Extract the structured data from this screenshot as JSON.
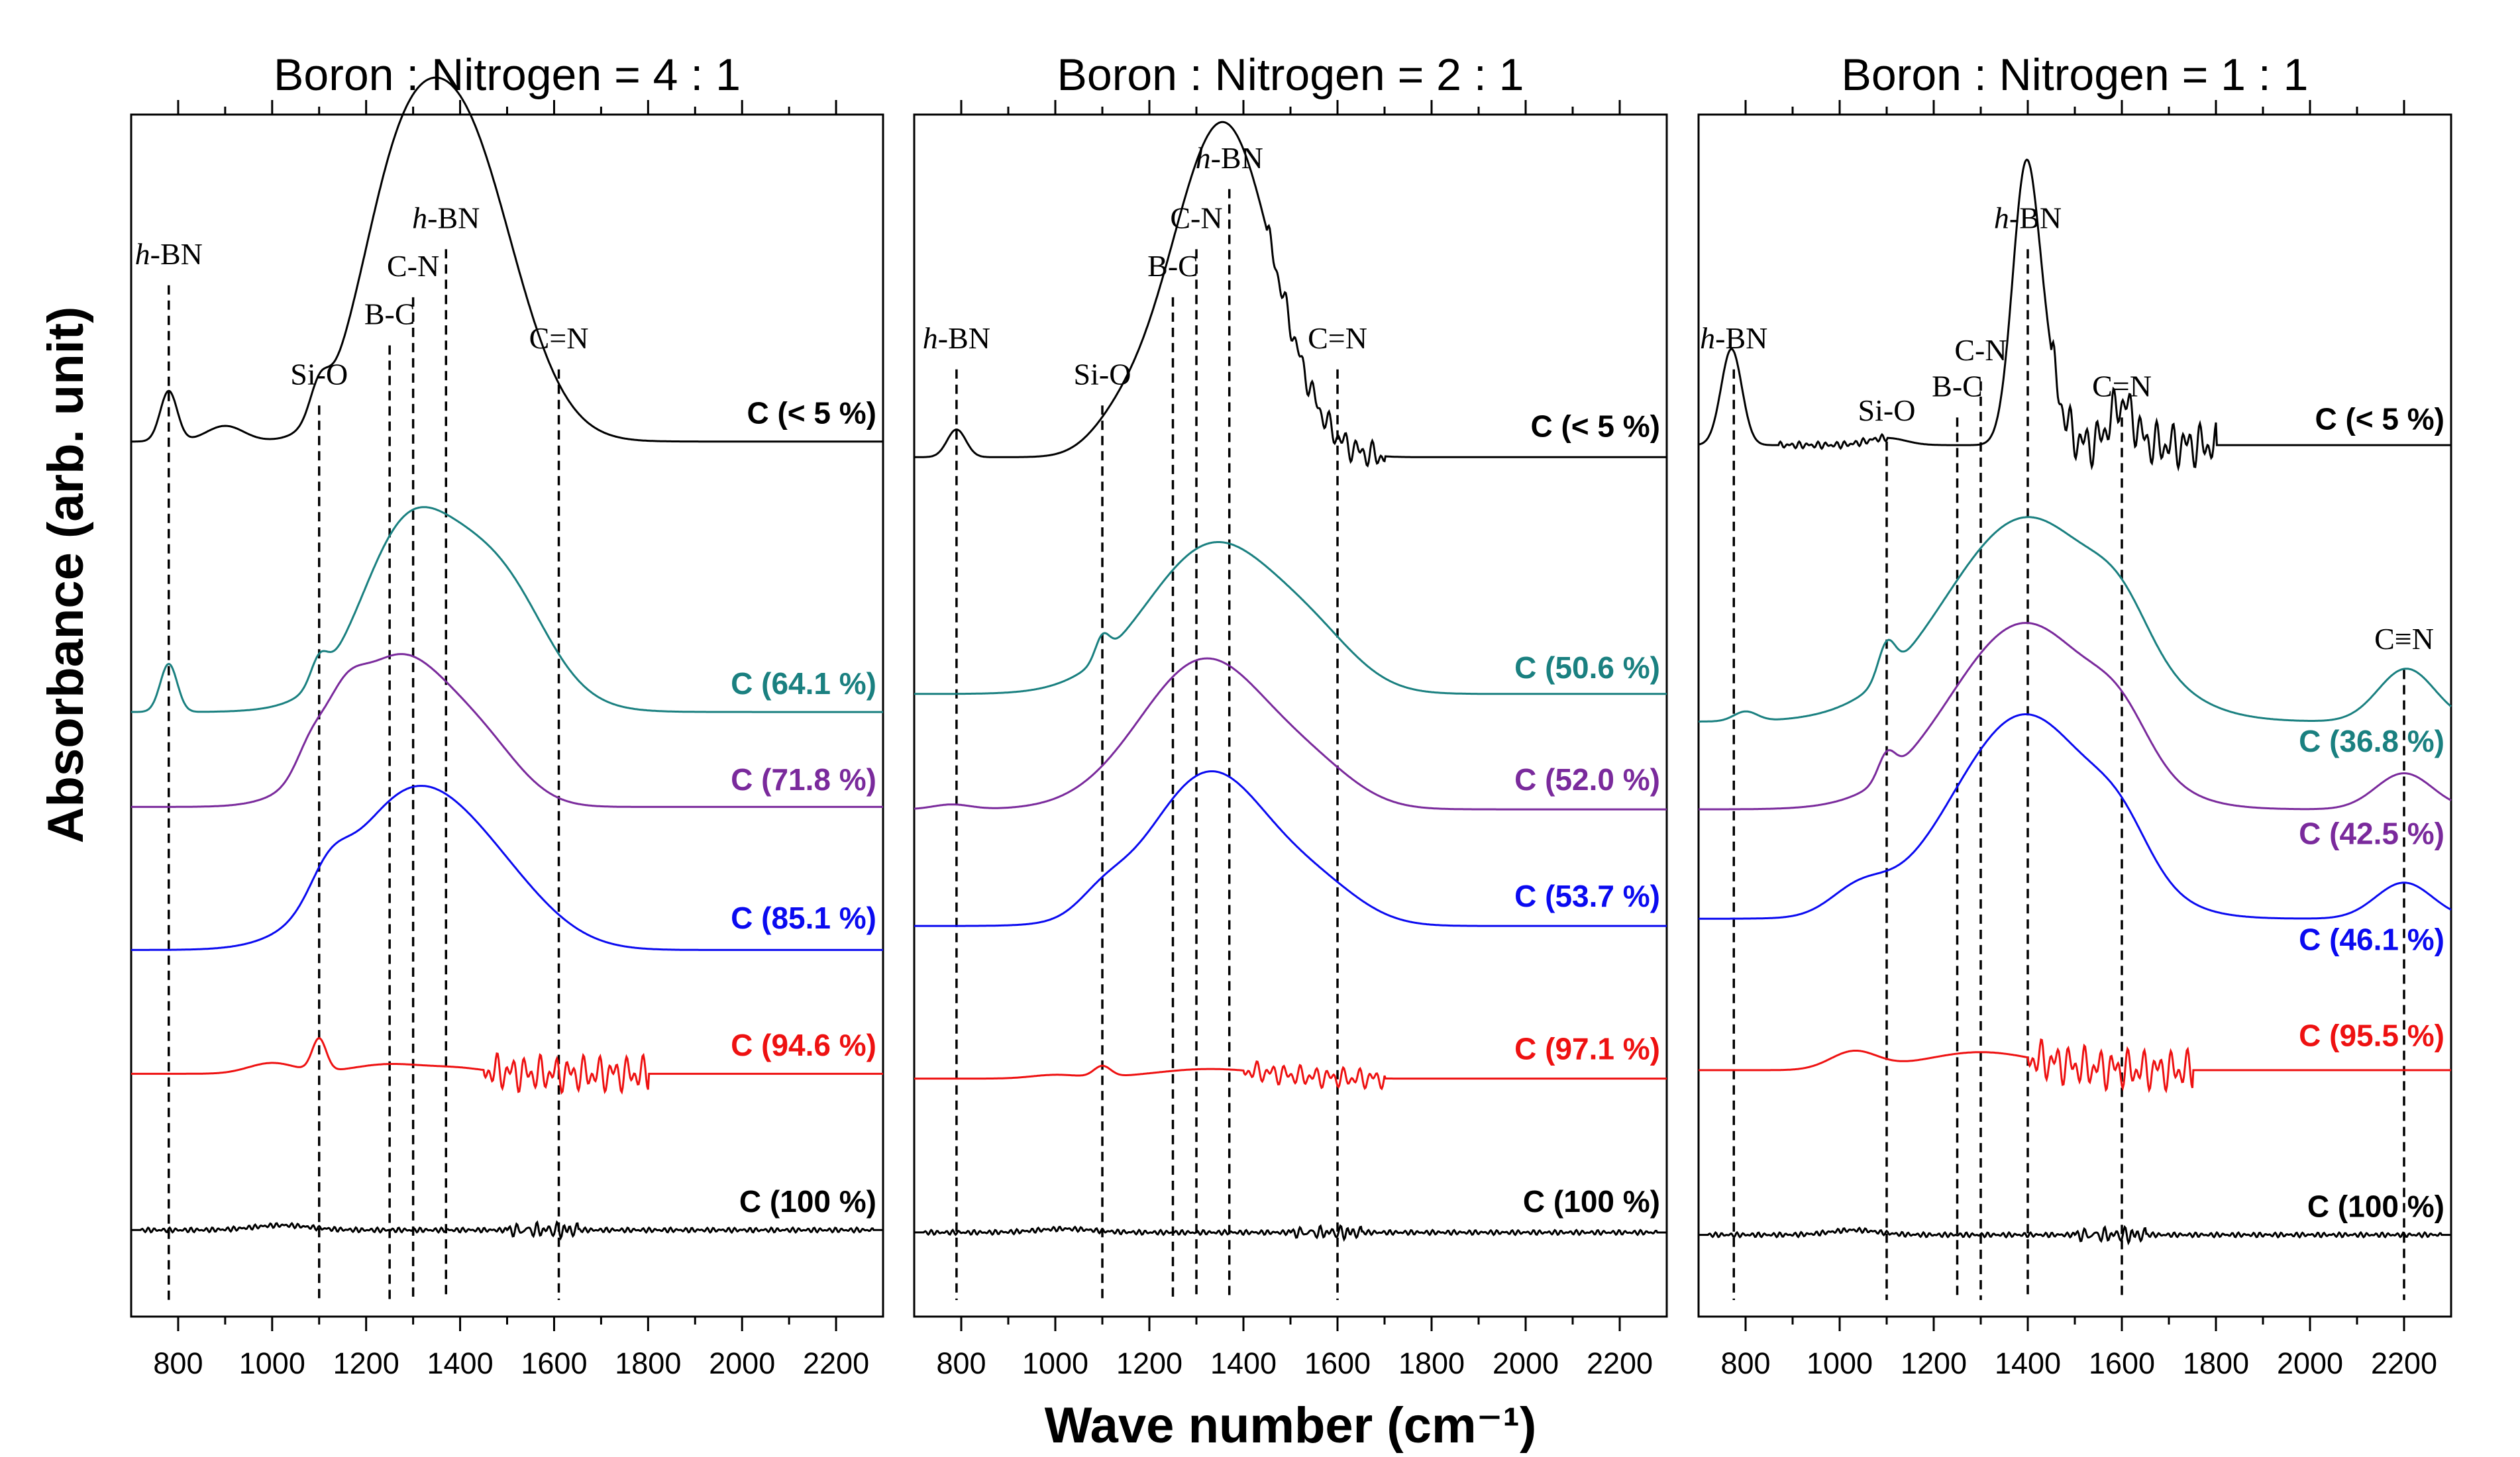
{
  "figure": {
    "ylabel": "Absorbance (arb. unit)",
    "xlabel": "Wave number (cm⁻¹)"
  },
  "chart_data": [
    {
      "type": "line",
      "title": "Boron : Nitrogen = 4 : 1",
      "xlim": [
        700,
        2300
      ],
      "ylim": [
        0,
        100
      ],
      "xticks": [
        800,
        1000,
        1200,
        1400,
        1600,
        1800,
        2000,
        2200
      ],
      "xticklabels": [
        "800",
        "1000",
        "1200",
        "1400",
        "1600",
        "1800",
        "2000",
        "2200"
      ],
      "refs": [
        {
          "x": 780,
          "label": "h-BN",
          "italic": "h",
          "rest": "-BN",
          "ly": 87
        },
        {
          "x": 1100,
          "label": "Si-O",
          "ly": 77
        },
        {
          "x": 1250,
          "label": "B-C",
          "ly": 82
        },
        {
          "x": 1300,
          "label": "C-N",
          "ly": 86
        },
        {
          "x": 1370,
          "label": "h-BN",
          "italic": "h",
          "rest": "-BN",
          "ly": 90
        },
        {
          "x": 1610,
          "label": "C=N",
          "ly": 80
        }
      ],
      "series": [
        {
          "name": "C (< 5 %)",
          "color": "#000000",
          "base": 72.8,
          "label_y": 74.3,
          "peaks": [
            [
              780,
              4.2,
              18
            ],
            [
              1100,
              2.6,
              20
            ],
            [
              1250,
              12,
              80
            ],
            [
              1375,
              20,
              110
            ],
            [
              1450,
              8,
              110
            ],
            [
              900,
              1.3,
              40
            ]
          ],
          "noise": []
        },
        {
          "name": "C (64.1 %)",
          "color": "#1a8080",
          "base": 50.3,
          "label_y": 51.8,
          "peaks": [
            [
              780,
              4.0,
              18
            ],
            [
              1100,
              2.0,
              18
            ],
            [
              1370,
              14,
              140
            ],
            [
              1260,
              5,
              80
            ],
            [
              1520,
              3,
              80
            ]
          ],
          "noise": []
        },
        {
          "name": "C (71.8 %)",
          "color": "#7a2a9c",
          "base": 42.4,
          "label_y": 43.8,
          "peaks": [
            [
              1270,
              12.5,
              120
            ],
            [
              1080,
              2.0,
              30
            ],
            [
              1150,
              3,
              40
            ],
            [
              1460,
              3,
              80
            ]
          ],
          "noise": []
        },
        {
          "name": "C (85.1 %)",
          "color": "#0a0af0",
          "base": 30.5,
          "label_y": 32.3,
          "peaks": [
            [
              1300,
              13,
              140
            ],
            [
              1120,
              2.5,
              40
            ],
            [
              1500,
              3,
              110
            ]
          ],
          "noise": []
        },
        {
          "name": "C (94.6 %)",
          "color": "#ee1111",
          "base": 20.2,
          "label_y": 21.7,
          "peaks": [
            [
              1100,
              2.7,
              15
            ],
            [
              1000,
              0.9,
              50
            ],
            [
              1250,
              0.8,
              80
            ],
            [
              1400,
              0.4,
              60
            ]
          ],
          "noise": [
            [
              1450,
              1800,
              1.6,
              23
            ]
          ]
        },
        {
          "name": "C (100 %)",
          "color": "#000000",
          "base": 7.2,
          "label_y": 8.7,
          "peaks": [
            [
              1020,
              0.4,
              60
            ]
          ],
          "noise": [
            [
              720,
              2280,
              0.2,
              13
            ],
            [
              1500,
              1650,
              0.6,
              17
            ]
          ]
        }
      ]
    },
    {
      "type": "line",
      "title": "Boron : Nitrogen = 2 : 1",
      "xlim": [
        700,
        2300
      ],
      "ylim": [
        0,
        100
      ],
      "xticks": [
        800,
        1000,
        1200,
        1400,
        1600,
        1800,
        2000,
        2200
      ],
      "xticklabels": [
        "800",
        "1000",
        "1200",
        "1400",
        "1600",
        "1800",
        "2000",
        "2200"
      ],
      "refs": [
        {
          "x": 790,
          "label": "h-BN",
          "italic": "h",
          "rest": "-BN",
          "ly": 80
        },
        {
          "x": 1100,
          "label": "Si-O",
          "ly": 77
        },
        {
          "x": 1250,
          "label": "B-C",
          "ly": 86
        },
        {
          "x": 1300,
          "label": "C-N",
          "ly": 90
        },
        {
          "x": 1370,
          "label": "h-BN",
          "italic": "h",
          "rest": "-BN",
          "ly": 95
        },
        {
          "x": 1600,
          "label": "C=N",
          "ly": 80
        }
      ],
      "series": [
        {
          "name": "C (< 5 %)",
          "color": "#000000",
          "base": 71.5,
          "label_y": 73.2,
          "peaks": [
            [
              790,
              2.3,
              20
            ],
            [
              1250,
              8,
              80
            ],
            [
              1360,
              22,
              85
            ],
            [
              1460,
              6,
              80
            ],
            [
              1130,
              2,
              60
            ]
          ],
          "noise": [
            [
              1450,
              1700,
              1.2,
              23
            ]
          ]
        },
        {
          "name": "C (50.6 %)",
          "color": "#1a8080",
          "base": 51.8,
          "label_y": 53.1,
          "peaks": [
            [
              1340,
              12.5,
              145
            ],
            [
              1100,
              1.8,
              15
            ],
            [
              1560,
              2.5,
              90
            ]
          ],
          "noise": []
        },
        {
          "name": "C (52.0 %)",
          "color": "#7a2a9c",
          "base": 42.2,
          "label_y": 43.8,
          "peaks": [
            [
              1320,
              12.5,
              140
            ],
            [
              780,
              0.4,
              40
            ],
            [
              1560,
              2,
              90
            ]
          ],
          "noise": []
        },
        {
          "name": "C (53.7 %)",
          "color": "#0a0af0",
          "base": 32.5,
          "label_y": 34.1,
          "peaks": [
            [
              1330,
              12.8,
              130
            ],
            [
              1100,
              1.4,
              50
            ],
            [
              1570,
              2.3,
              90
            ]
          ],
          "noise": []
        },
        {
          "name": "C (97.1 %)",
          "color": "#ee1111",
          "base": 19.8,
          "label_y": 21.4,
          "peaks": [
            [
              1100,
              0.9,
              18
            ],
            [
              1330,
              0.8,
              120
            ],
            [
              1000,
              0.3,
              50
            ]
          ],
          "noise": [
            [
              1400,
              1700,
              0.9,
              23
            ]
          ]
        },
        {
          "name": "C (100 %)",
          "color": "#000000",
          "base": 7.0,
          "label_y": 8.7,
          "peaks": [
            [
              1020,
              0.3,
              60
            ]
          ],
          "noise": [
            [
              720,
              2280,
              0.2,
              13
            ],
            [
              1500,
              1650,
              0.5,
              17
            ]
          ]
        }
      ]
    },
    {
      "type": "line",
      "title": "Boron : Nitrogen = 1 : 1",
      "xlim": [
        700,
        2300
      ],
      "ylim": [
        0,
        100
      ],
      "xticks": [
        800,
        1000,
        1200,
        1400,
        1600,
        1800,
        2000,
        2200
      ],
      "xticklabels": [
        "800",
        "1000",
        "1200",
        "1400",
        "1600",
        "1800",
        "2000",
        "2200"
      ],
      "refs": [
        {
          "x": 775,
          "label": "h-BN",
          "italic": "h",
          "rest": "-BN",
          "ly": 80
        },
        {
          "x": 1100,
          "label": "Si-O",
          "ly": 74
        },
        {
          "x": 1250,
          "label": "B-C",
          "ly": 76
        },
        {
          "x": 1300,
          "label": "C-N",
          "ly": 79
        },
        {
          "x": 1400,
          "label": "h-BN",
          "italic": "h",
          "rest": "-BN",
          "ly": 90
        },
        {
          "x": 1600,
          "label": "C=N",
          "ly": 76
        },
        {
          "x": 2200,
          "label": "C≡N",
          "ly": 55
        }
      ],
      "series": [
        {
          "name": "C (< 5 %)",
          "color": "#000000",
          "base": 72.5,
          "label_y": 73.8,
          "peaks": [
            [
              770,
              8,
              22
            ],
            [
              1395,
              22,
              28
            ],
            [
              1440,
              5,
              30
            ],
            [
              1600,
              3.5,
              25
            ],
            [
              1100,
              0.6,
              40
            ]
          ],
          "noise": [
            [
              1450,
              1800,
              2.0,
              23
            ],
            [
              870,
              1100,
              0.3,
              16
            ]
          ]
        },
        {
          "name": "C (36.8 %)",
          "color": "#1a8080",
          "base": 49.5,
          "label_y": 47.0,
          "peaks": [
            [
              1400,
              17,
              175
            ],
            [
              1100,
              2.8,
              18
            ],
            [
              2205,
              4.4,
              60
            ],
            [
              800,
              0.8,
              25
            ],
            [
              1600,
              3,
              60
            ]
          ],
          "noise": []
        },
        {
          "name": "C (42.5 %)",
          "color": "#7a2a9c",
          "base": 42.2,
          "label_y": 39.3,
          "peaks": [
            [
              1395,
              15.5,
              160
            ],
            [
              1100,
              2.0,
              18
            ],
            [
              2200,
              3.0,
              60
            ],
            [
              1600,
              3,
              60
            ]
          ],
          "noise": []
        },
        {
          "name": "C (46.1 %)",
          "color": "#0a0af0",
          "base": 33.1,
          "label_y": 30.5,
          "peaks": [
            [
              1395,
              17,
              155
            ],
            [
              1040,
              2,
              60
            ],
            [
              2200,
              3.0,
              60
            ],
            [
              1600,
              3,
              60
            ]
          ],
          "noise": []
        },
        {
          "name": "C (95.5 %)",
          "color": "#ee1111",
          "base": 20.5,
          "label_y": 22.5,
          "peaks": [
            [
              1030,
              1.5,
              50
            ],
            [
              1300,
              1.5,
              120
            ]
          ],
          "noise": [
            [
              1400,
              1750,
              1.8,
              23
            ]
          ]
        },
        {
          "name": "C (100 %)",
          "color": "#000000",
          "base": 6.8,
          "label_y": 8.3,
          "peaks": [
            [
              1030,
              0.4,
              50
            ]
          ],
          "noise": [
            [
              720,
              2280,
              0.2,
              13
            ],
            [
              1500,
              1650,
              0.6,
              17
            ]
          ]
        }
      ]
    }
  ]
}
